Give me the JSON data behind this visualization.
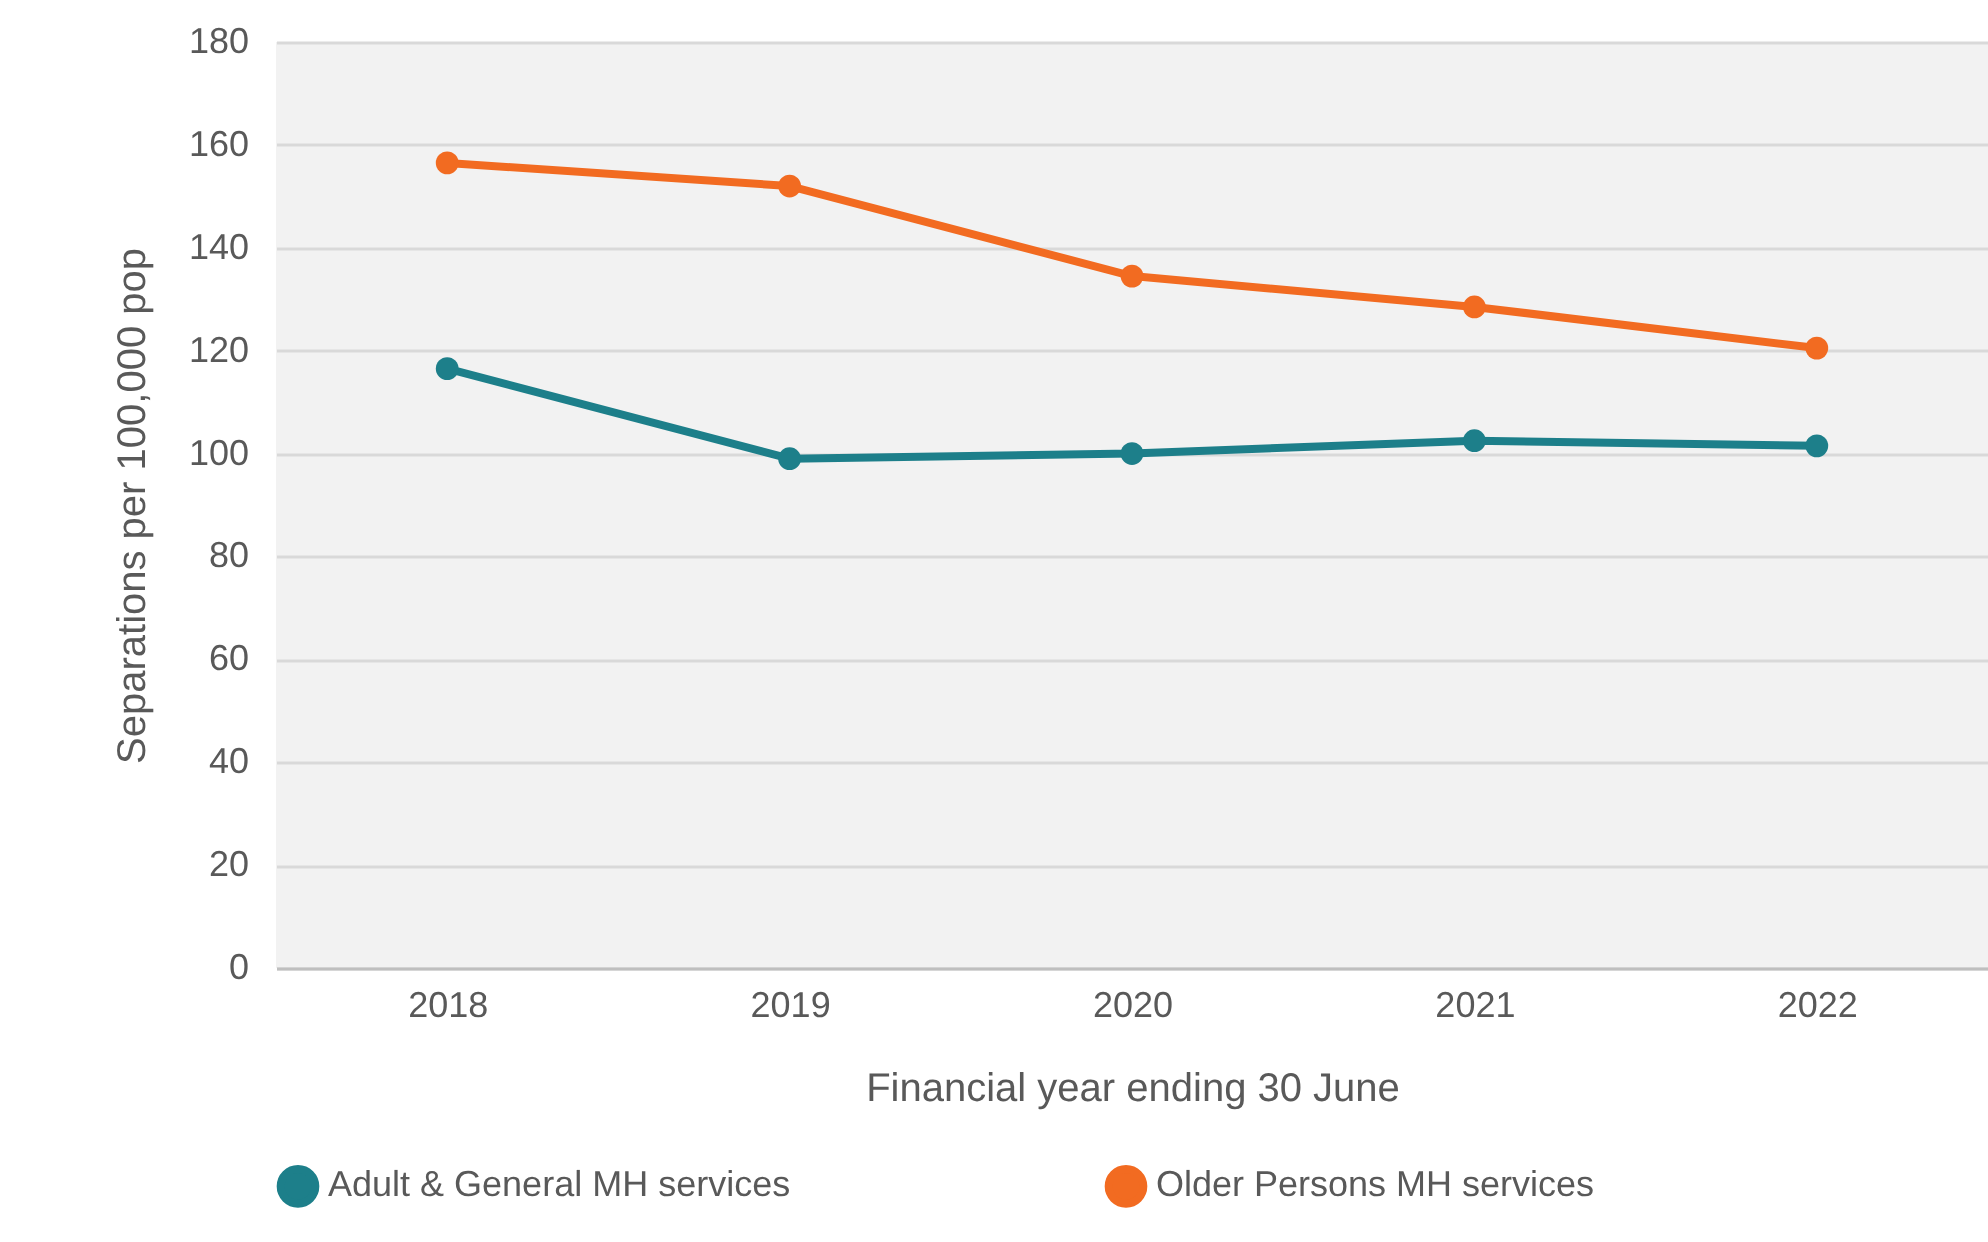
{
  "chart_data": {
    "type": "line",
    "xlabel": "Financial year ending 30 June",
    "ylabel": "Separations per 100,000 pop",
    "categories": [
      "2018",
      "2019",
      "2020",
      "2021",
      "2022"
    ],
    "series": [
      {
        "name": "Adult & General MH services",
        "color": "#1d7f8a",
        "values": [
          116.5,
          99,
          100,
          102.5,
          101.5
        ]
      },
      {
        "name": "Older Persons MH services",
        "color": "#f26b21",
        "values": [
          156.5,
          152,
          134.5,
          128.5,
          120.5
        ]
      }
    ],
    "ylim": [
      0,
      180
    ],
    "yticks": [
      0,
      20,
      40,
      60,
      80,
      100,
      120,
      140,
      160,
      180
    ],
    "grid": "y",
    "legend": "bottom",
    "marker": "circle",
    "line_style": "solid"
  }
}
